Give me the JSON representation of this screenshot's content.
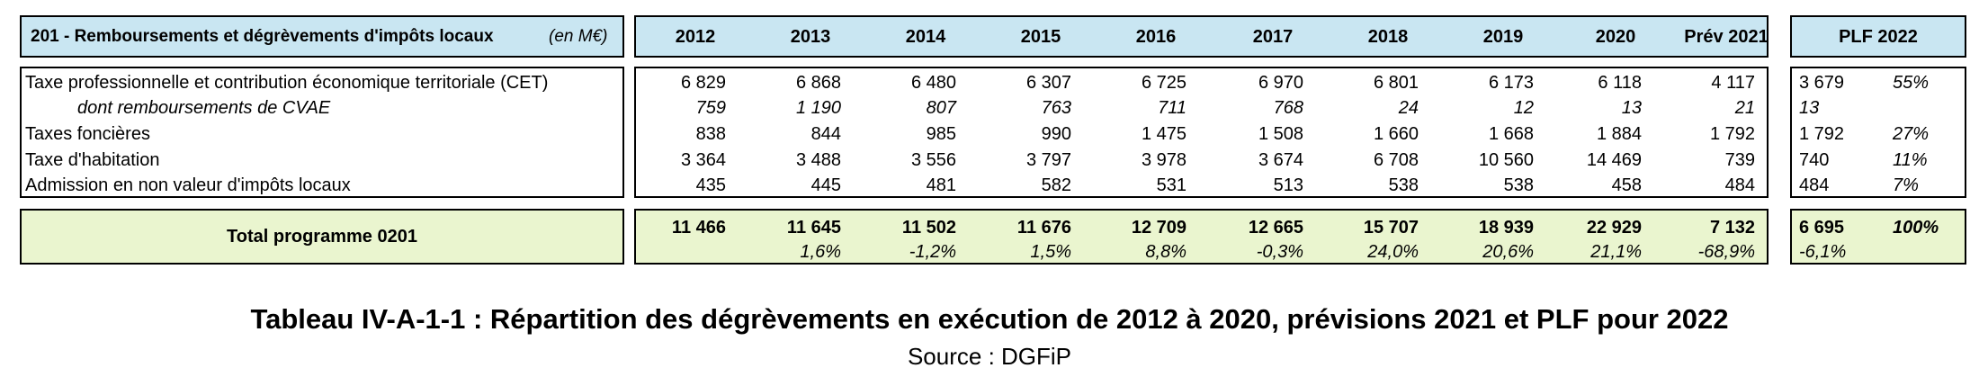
{
  "header": {
    "title": "201 - Remboursements et dégrèvements d'impôts locaux",
    "unit": "(en M€)",
    "years": [
      "2012",
      "2013",
      "2014",
      "2015",
      "2016",
      "2017",
      "2018",
      "2019",
      "2020",
      "Prév 2021"
    ],
    "plf": "PLF 2022"
  },
  "rows": [
    {
      "label": "Taxe professionnelle et contribution économique territoriale (CET)",
      "italic": false,
      "values": [
        "6 829",
        "6 868",
        "6 480",
        "6 307",
        "6 725",
        "6 970",
        "6 801",
        "6 173",
        "6 118",
        "4 117"
      ],
      "plf": "3 679",
      "share": "55%"
    },
    {
      "label": "dont remboursements de CVAE",
      "italic": true,
      "values": [
        "759",
        "1 190",
        "807",
        "763",
        "711",
        "768",
        "24",
        "12",
        "13",
        "21"
      ],
      "plf": "13",
      "share": ""
    },
    {
      "label": "Taxes foncières",
      "italic": false,
      "values": [
        "838",
        "844",
        "985",
        "990",
        "1 475",
        "1 508",
        "1 660",
        "1 668",
        "1 884",
        "1 792"
      ],
      "plf": "1 792",
      "share": "27%"
    },
    {
      "label": "Taxe d'habitation",
      "italic": false,
      "values": [
        "3 364",
        "3 488",
        "3 556",
        "3 797",
        "3 978",
        "3 674",
        "6 708",
        "10 560",
        "14 469",
        "739"
      ],
      "plf": "740",
      "share": "11%"
    },
    {
      "label": "Admission en non valeur d'impôts locaux",
      "italic": false,
      "values": [
        "435",
        "445",
        "481",
        "582",
        "531",
        "513",
        "538",
        "538",
        "458",
        "484"
      ],
      "plf": "484",
      "share": "7%"
    }
  ],
  "total": {
    "label": "Total programme 0201",
    "values": [
      "11 466",
      "11 645",
      "11 502",
      "11 676",
      "12 709",
      "12 665",
      "15 707",
      "18 939",
      "22 929",
      "7 132"
    ],
    "growth": [
      "",
      "1,6%",
      "-1,2%",
      "1,5%",
      "8,8%",
      "-0,3%",
      "24,0%",
      "20,6%",
      "21,1%",
      "-68,9%"
    ],
    "plf": "6 695",
    "plf_share": "100%",
    "plf_growth": "-6,1%"
  },
  "caption": {
    "title": "Tableau IV-A-1-1 : Répartition des dégrèvements en exécution de 2012 à 2020, prévisions 2021 et PLF pour 2022",
    "source": "Source : DGFiP"
  }
}
